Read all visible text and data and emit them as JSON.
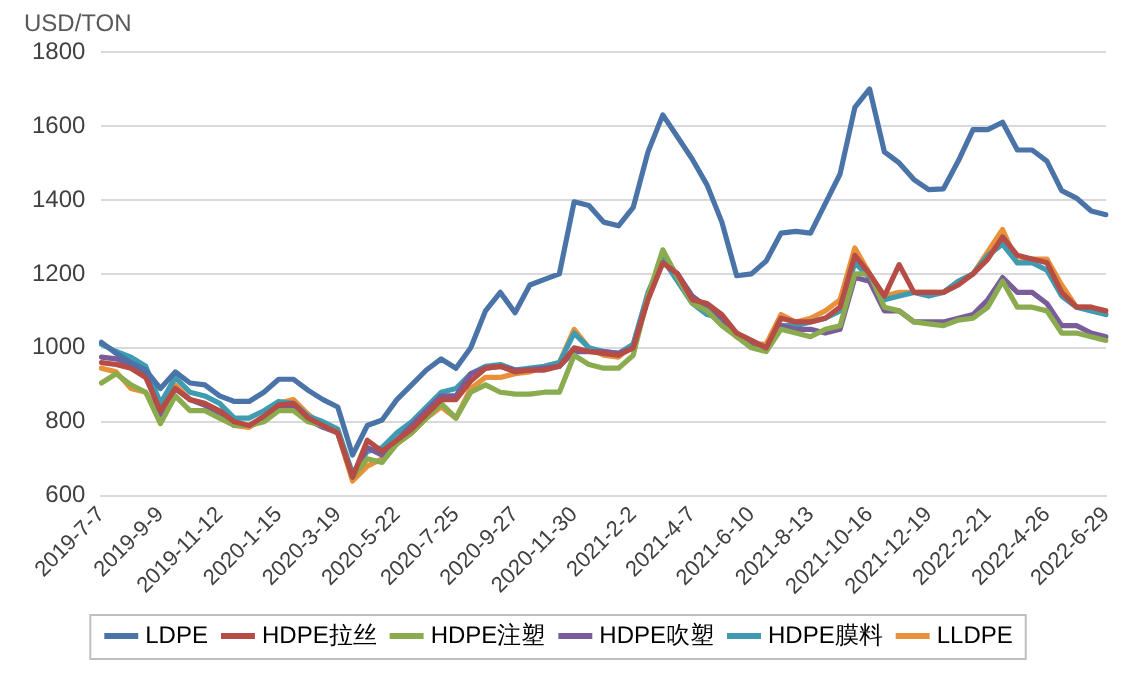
{
  "chart_data": {
    "type": "line",
    "ylabel": "USD/TON",
    "categories": [
      "2019-7-7",
      null,
      null,
      null,
      "2019-9-9",
      null,
      null,
      null,
      "2019-11-12",
      null,
      null,
      null,
      "2020-1-15",
      null,
      null,
      null,
      "2020-3-19",
      null,
      null,
      null,
      "2020-5-22",
      null,
      null,
      null,
      "2020-7-25",
      null,
      null,
      null,
      "2020-9-27",
      null,
      null,
      null,
      "2020-11-30",
      null,
      null,
      null,
      "2021-2-2",
      null,
      null,
      null,
      "2021-4-7",
      null,
      null,
      null,
      "2021-6-10",
      null,
      null,
      null,
      "2021-8-13",
      null,
      null,
      null,
      "2021-10-16",
      null,
      null,
      null,
      "2021-12-19",
      null,
      null,
      null,
      "2022-2-21",
      null,
      null,
      null,
      "2022-4-26",
      null,
      null,
      null,
      "2022-6-29"
    ],
    "series": [
      {
        "name": "LDPE",
        "color": "#4a73a8",
        "values": [
          1015,
          985,
          960,
          940,
          890,
          935,
          905,
          900,
          870,
          855,
          855,
          880,
          915,
          915,
          885,
          860,
          840,
          710,
          790,
          805,
          860,
          900,
          940,
          970,
          945,
          1000,
          1100,
          1150,
          1095,
          1170,
          1185,
          1200,
          1395,
          1385,
          1340,
          1330,
          1380,
          1530,
          1630,
          1570,
          1510,
          1440,
          1340,
          1195,
          1200,
          1235,
          1310,
          1315,
          1310,
          1390,
          1470,
          1650,
          1700,
          1530,
          1500,
          1455,
          1428,
          1430,
          1505,
          1590,
          1590,
          1610,
          1535,
          1535,
          1505,
          1425,
          1405,
          1370,
          1360
        ]
      },
      {
        "name": "HDPE拉丝",
        "color": "#b54c45",
        "values": [
          960,
          955,
          945,
          920,
          830,
          890,
          860,
          850,
          830,
          800,
          790,
          815,
          845,
          850,
          810,
          790,
          770,
          650,
          750,
          720,
          750,
          780,
          820,
          860,
          860,
          910,
          945,
          950,
          935,
          940,
          940,
          950,
          1000,
          990,
          985,
          980,
          1000,
          1130,
          1230,
          1200,
          1130,
          1120,
          1090,
          1040,
          1020,
          1000,
          1080,
          1070,
          1070,
          1080,
          1110,
          1250,
          1200,
          1140,
          1225,
          1150,
          1150,
          1150,
          1170,
          1200,
          1240,
          1300,
          1250,
          1240,
          1230,
          1150,
          1110,
          1110,
          1100
        ]
      },
      {
        "name": "HDPE注塑",
        "color": "#8aac4f",
        "values": [
          905,
          930,
          900,
          880,
          795,
          870,
          830,
          830,
          810,
          790,
          790,
          800,
          830,
          830,
          800,
          790,
          770,
          650,
          700,
          690,
          740,
          770,
          810,
          850,
          810,
          880,
          900,
          880,
          875,
          875,
          880,
          880,
          980,
          955,
          945,
          945,
          980,
          1140,
          1265,
          1190,
          1120,
          1100,
          1060,
          1030,
          1000,
          990,
          1050,
          1040,
          1030,
          1050,
          1060,
          1200,
          1200,
          1110,
          1100,
          1070,
          1065,
          1060,
          1075,
          1080,
          1110,
          1180,
          1110,
          1110,
          1100,
          1040,
          1040,
          1030,
          1020
        ]
      },
      {
        "name": "HDPE吹塑",
        "color": "#7a5c9a",
        "values": [
          975,
          970,
          955,
          930,
          820,
          890,
          860,
          845,
          825,
          790,
          790,
          810,
          840,
          840,
          805,
          785,
          770,
          655,
          730,
          710,
          750,
          790,
          830,
          870,
          870,
          930,
          945,
          950,
          940,
          940,
          945,
          950,
          990,
          990,
          990,
          985,
          1000,
          1140,
          1230,
          1200,
          1140,
          1110,
          1080,
          1030,
          1010,
          1000,
          1060,
          1050,
          1050,
          1040,
          1050,
          1190,
          1180,
          1100,
          1100,
          1070,
          1070,
          1070,
          1080,
          1090,
          1130,
          1190,
          1150,
          1150,
          1120,
          1060,
          1060,
          1040,
          1030
        ]
      },
      {
        "name": "HDPE膜料",
        "color": "#3f9bb1",
        "values": [
          1010,
          990,
          975,
          950,
          850,
          920,
          880,
          870,
          850,
          810,
          810,
          830,
          855,
          850,
          815,
          800,
          780,
          660,
          720,
          730,
          770,
          800,
          840,
          880,
          890,
          930,
          950,
          955,
          940,
          945,
          950,
          960,
          1040,
          1000,
          990,
          985,
          1010,
          1150,
          1240,
          1180,
          1120,
          1090,
          1080,
          1040,
          1010,
          1000,
          1060,
          1060,
          1070,
          1080,
          1100,
          1230,
          1190,
          1130,
          1140,
          1150,
          1140,
          1150,
          1180,
          1200,
          1250,
          1280,
          1230,
          1230,
          1210,
          1140,
          1110,
          1100,
          1090
        ]
      },
      {
        "name": "LLDPE",
        "color": "#e8913a",
        "values": [
          945,
          935,
          890,
          880,
          810,
          900,
          860,
          845,
          820,
          790,
          785,
          810,
          850,
          860,
          820,
          790,
          770,
          640,
          680,
          700,
          740,
          770,
          810,
          840,
          810,
          890,
          920,
          920,
          930,
          935,
          950,
          960,
          1050,
          1000,
          980,
          975,
          1010,
          1140,
          1240,
          1190,
          1130,
          1110,
          1080,
          1030,
          1010,
          1010,
          1090,
          1070,
          1080,
          1100,
          1130,
          1270,
          1200,
          1140,
          1150,
          1150,
          1150,
          1150,
          1180,
          1200,
          1260,
          1320,
          1230,
          1240,
          1240,
          1170,
          1110,
          1110,
          1090
        ]
      }
    ],
    "ylim": [
      600,
      1800
    ],
    "yticks": [
      600,
      800,
      1000,
      1200,
      1400,
      1600,
      1800
    ],
    "grid": "y",
    "legend": "bottom",
    "marker": "none",
    "line_style": "solid"
  }
}
